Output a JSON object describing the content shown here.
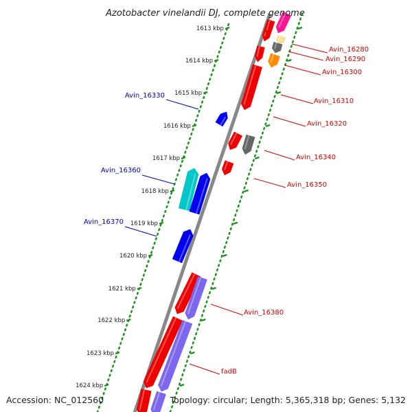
{
  "title": "Azotobacter vinelandii DJ, complete genome",
  "footer": {
    "accession": "Accession: NC_012560",
    "summary": "Topology: circular; Length: 5,365,318 bp; Genes: 5,132"
  },
  "colors": {
    "backbone": "#888888",
    "tick": "#1f8f1f",
    "forward_label": "#0000cc",
    "reverse_label": "#dd0000",
    "leader_forward": "#0000dd",
    "leader_reverse": "#dd0000"
  },
  "ticks": [
    {
      "label": "1613 kbp"
    },
    {
      "label": "1614 kbp"
    },
    {
      "label": "1615 kbp"
    },
    {
      "label": "1616 kbp"
    },
    {
      "label": "1617 kbp"
    },
    {
      "label": "1618 kbp"
    },
    {
      "label": "1619 kbp"
    },
    {
      "label": "1620 kbp"
    },
    {
      "label": "1621 kbp"
    },
    {
      "label": "1622 kbp"
    },
    {
      "label": "1623 kbp"
    },
    {
      "label": "1624 kbp"
    }
  ],
  "forward_labels": [
    {
      "text": "Avin_16330"
    },
    {
      "text": "Avin_16360"
    },
    {
      "text": "Avin_16370"
    }
  ],
  "reverse_labels": [
    {
      "text": "Avin_16280"
    },
    {
      "text": "Avin_16290"
    },
    {
      "text": "Avin_16300"
    },
    {
      "text": "Avin_16310"
    },
    {
      "text": "Avin_16320"
    },
    {
      "text": "Avin_16340"
    },
    {
      "text": "Avin_16350"
    },
    {
      "text": "Avin_16380"
    },
    {
      "text": "fadB"
    }
  ],
  "features": [
    {
      "strand": "forward",
      "color": "#0000ee"
    },
    {
      "strand": "forward",
      "color": "#00c8c8"
    },
    {
      "strand": "forward",
      "color": "#0000ee"
    },
    {
      "strand": "forward",
      "color": "#0000ee"
    },
    {
      "strand": "reverse",
      "color": "#ee0000"
    },
    {
      "strand": "reverse",
      "color": "#ee0000"
    },
    {
      "strand": "reverse",
      "color": "#ee0000"
    },
    {
      "strand": "reverse",
      "color": "#ee0000"
    },
    {
      "strand": "reverse",
      "color": "#ee0000"
    },
    {
      "strand": "reverse",
      "color": "#ee0000"
    },
    {
      "strand": "reverse",
      "color": "#ee0000"
    },
    {
      "strand": "reverse",
      "color": "#ee0000"
    },
    {
      "strand": "reverse",
      "color": "#ee0000"
    },
    {
      "strand": "reverse",
      "color": "#ff1493"
    },
    {
      "strand": "reverse",
      "color": "#f5e19a"
    },
    {
      "strand": "reverse",
      "color": "#666666"
    },
    {
      "strand": "reverse",
      "color": "#ff8c00"
    },
    {
      "strand": "reverse",
      "color": "#666666"
    },
    {
      "strand": "reverse",
      "color": "#7b68ee"
    },
    {
      "strand": "reverse",
      "color": "#7b68ee"
    },
    {
      "strand": "reverse",
      "color": "#7b68ee"
    }
  ]
}
